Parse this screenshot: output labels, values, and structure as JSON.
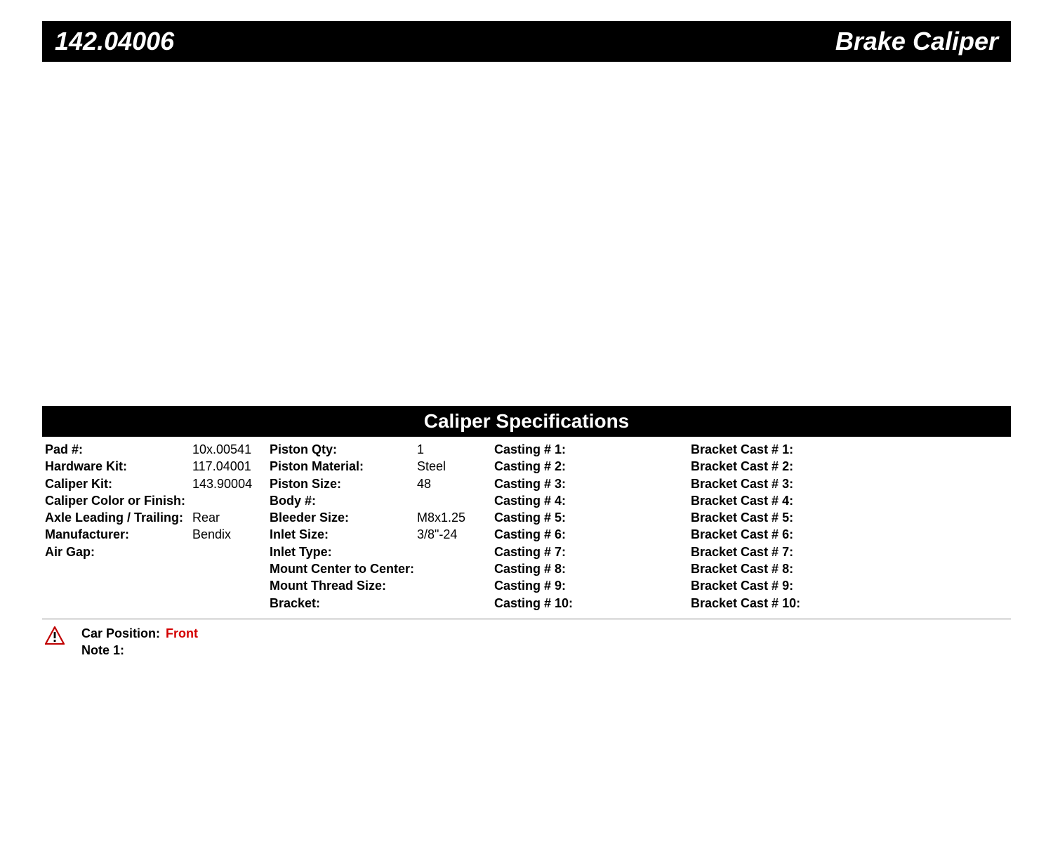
{
  "header": {
    "part_number": "142.04006",
    "product_name": "Brake Caliper"
  },
  "section_title": "Caliper Specifications",
  "specs": {
    "col1": [
      {
        "label": "Pad #:",
        "value": "10x.00541"
      },
      {
        "label": "Hardware Kit:",
        "value": "117.04001"
      },
      {
        "label": "Caliper Kit:",
        "value": "143.90004"
      },
      {
        "label": "Caliper Color or Finish:",
        "value": ""
      },
      {
        "label": "Axle Leading / Trailing:",
        "value": "Rear"
      },
      {
        "label": "Manufacturer:",
        "value": "Bendix"
      },
      {
        "label": "Air Gap:",
        "value": ""
      }
    ],
    "col2": [
      {
        "label": "Piston Qty:",
        "value": "1"
      },
      {
        "label": "Piston Material:",
        "value": "Steel"
      },
      {
        "label": "Piston Size:",
        "value": "48"
      },
      {
        "label": "Body #:",
        "value": ""
      },
      {
        "label": "Bleeder Size:",
        "value": "M8x1.25"
      },
      {
        "label": "Inlet Size:",
        "value": "3/8\"-24"
      },
      {
        "label": "Inlet Type:",
        "value": ""
      },
      {
        "label": "Mount Center to Center:",
        "value": ""
      },
      {
        "label": "Mount Thread Size:",
        "value": ""
      },
      {
        "label": "Bracket:",
        "value": ""
      }
    ],
    "col3": [
      {
        "label": "Casting # 1:",
        "value": ""
      },
      {
        "label": "Casting # 2:",
        "value": ""
      },
      {
        "label": "Casting # 3:",
        "value": ""
      },
      {
        "label": "Casting # 4:",
        "value": ""
      },
      {
        "label": "Casting # 5:",
        "value": ""
      },
      {
        "label": "Casting # 6:",
        "value": ""
      },
      {
        "label": "Casting # 7:",
        "value": ""
      },
      {
        "label": "Casting # 8:",
        "value": ""
      },
      {
        "label": "Casting # 9:",
        "value": ""
      },
      {
        "label": "Casting # 10:",
        "value": ""
      }
    ],
    "col4": [
      {
        "label": "Bracket Cast # 1:",
        "value": ""
      },
      {
        "label": "Bracket Cast # 2:",
        "value": ""
      },
      {
        "label": "Bracket Cast # 3:",
        "value": ""
      },
      {
        "label": "Bracket Cast # 4:",
        "value": ""
      },
      {
        "label": "Bracket Cast # 5:",
        "value": ""
      },
      {
        "label": "Bracket Cast # 6:",
        "value": ""
      },
      {
        "label": "Bracket Cast # 7:",
        "value": ""
      },
      {
        "label": "Bracket Cast # 8:",
        "value": ""
      },
      {
        "label": "Bracket Cast # 9:",
        "value": ""
      },
      {
        "label": "Bracket Cast # 10:",
        "value": ""
      }
    ]
  },
  "footer": {
    "car_position_label": "Car Position:",
    "car_position_value": "Front",
    "note1_label": "Note 1:",
    "note1_value": ""
  },
  "colors": {
    "header_bg": "#000000",
    "header_text": "#ffffff",
    "accent_red": "#d40000",
    "warning_border": "#c00000",
    "warning_fill": "#ffffff"
  }
}
